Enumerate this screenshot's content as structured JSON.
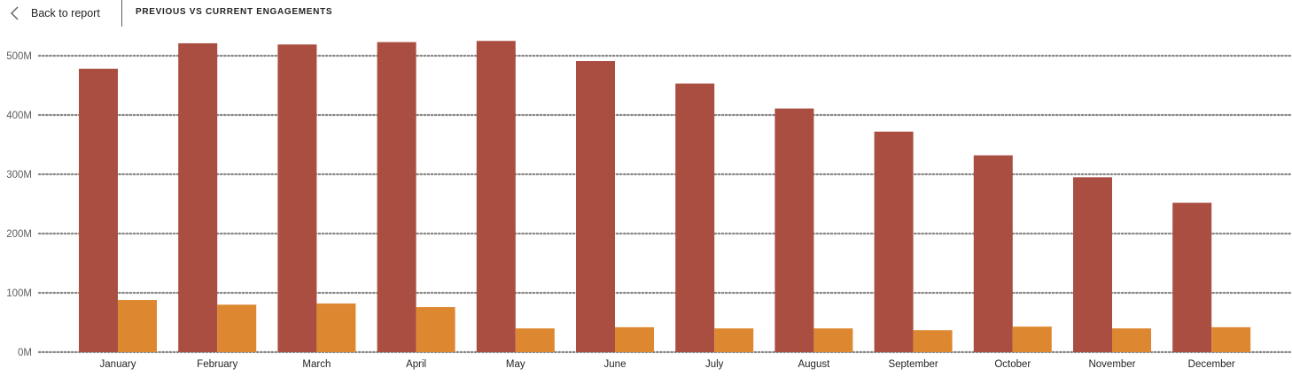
{
  "header": {
    "back_label": "Back to report",
    "title": "PREVIOUS VS CURRENT ENGAGEMENTS"
  },
  "colors": {
    "series_1": "#A94E40",
    "series_2": "#DD8730",
    "grid": "#8a8886",
    "text": "#252423"
  },
  "chart_data": {
    "type": "bar",
    "categories": [
      "January",
      "February",
      "March",
      "April",
      "May",
      "June",
      "July",
      "August",
      "September",
      "October",
      "November",
      "December"
    ],
    "series": [
      {
        "values": [
          478,
          521,
          519,
          523,
          525,
          491,
          453,
          411,
          372,
          332,
          295,
          252
        ]
      },
      {
        "values": [
          88,
          80,
          82,
          76,
          40,
          42,
          40,
          40,
          37,
          43,
          40,
          42
        ]
      }
    ],
    "unit": "M",
    "y_ticks": [
      "0M",
      "100M",
      "200M",
      "300M",
      "400M",
      "500M"
    ],
    "ylim": [
      0,
      500
    ],
    "grid": true,
    "legend": "none"
  }
}
